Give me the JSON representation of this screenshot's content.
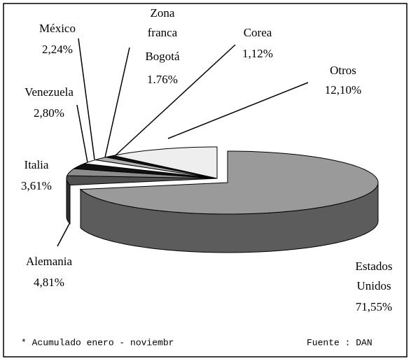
{
  "chart_data": {
    "type": "pie",
    "categories": [
      "Estados Unidos",
      "Alemania",
      "Italia",
      "Venezuela",
      "México",
      "Zona franca Bogotá",
      "Corea",
      "Otros"
    ],
    "values": [
      71.55,
      4.81,
      3.61,
      2.8,
      2.24,
      1.76,
      1.12,
      12.1
    ],
    "value_labels": [
      "71,55%",
      "4,81%",
      "3,61%",
      "2,80%",
      "2,24%",
      "1.76%",
      "1,12%",
      "12,10%"
    ],
    "colors": [
      "#9a9a9a",
      "#505050",
      "#8c8c8c",
      "#111111",
      "#ffffff",
      "#b0b0b0",
      "#111111",
      "#eeeeee"
    ],
    "footnote": "* Acumulado enero - noviembr",
    "source": "Fuente : DAN"
  }
}
